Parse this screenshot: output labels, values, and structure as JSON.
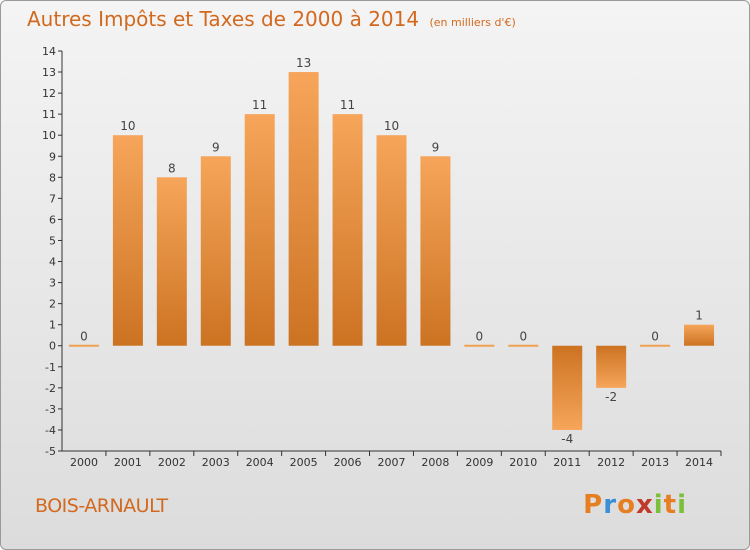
{
  "header": {
    "title": "Autres Impôts et Taxes de 2000 à 2014",
    "unit": "(en milliers d'€)"
  },
  "footer": {
    "commune": "BOIS-ARNAULT",
    "logo_letters": [
      "P",
      "r",
      "o",
      "x",
      "i",
      "t",
      "i"
    ],
    "logo_colors": [
      "#e67e22",
      "#3a8fd6",
      "#e67e22",
      "#c0392b",
      "#7cbf3a",
      "#e67e22",
      "#7cbf3a"
    ]
  },
  "colors": {
    "bar_light": "#f6a55a",
    "bar_dark": "#cc7322",
    "text": "#d2691e",
    "axis": "#333333"
  },
  "chart_data": {
    "type": "bar",
    "title": "Autres Impôts et Taxes de 2000 à 2014",
    "subtitle": "(en milliers d'€)",
    "categories": [
      "2000",
      "2001",
      "2002",
      "2003",
      "2004",
      "2005",
      "2006",
      "2007",
      "2008",
      "2009",
      "2010",
      "2011",
      "2012",
      "2013",
      "2014"
    ],
    "values": [
      0,
      10,
      8,
      9,
      11,
      13,
      11,
      10,
      9,
      0,
      0,
      -4,
      -2,
      0,
      1
    ],
    "ylim": [
      -5,
      14
    ],
    "yticks": [
      -5,
      -4,
      -3,
      -2,
      -1,
      0,
      1,
      2,
      3,
      4,
      5,
      6,
      7,
      8,
      9,
      10,
      11,
      12,
      13,
      14
    ],
    "grid": false,
    "xlabel": "",
    "ylabel": ""
  }
}
